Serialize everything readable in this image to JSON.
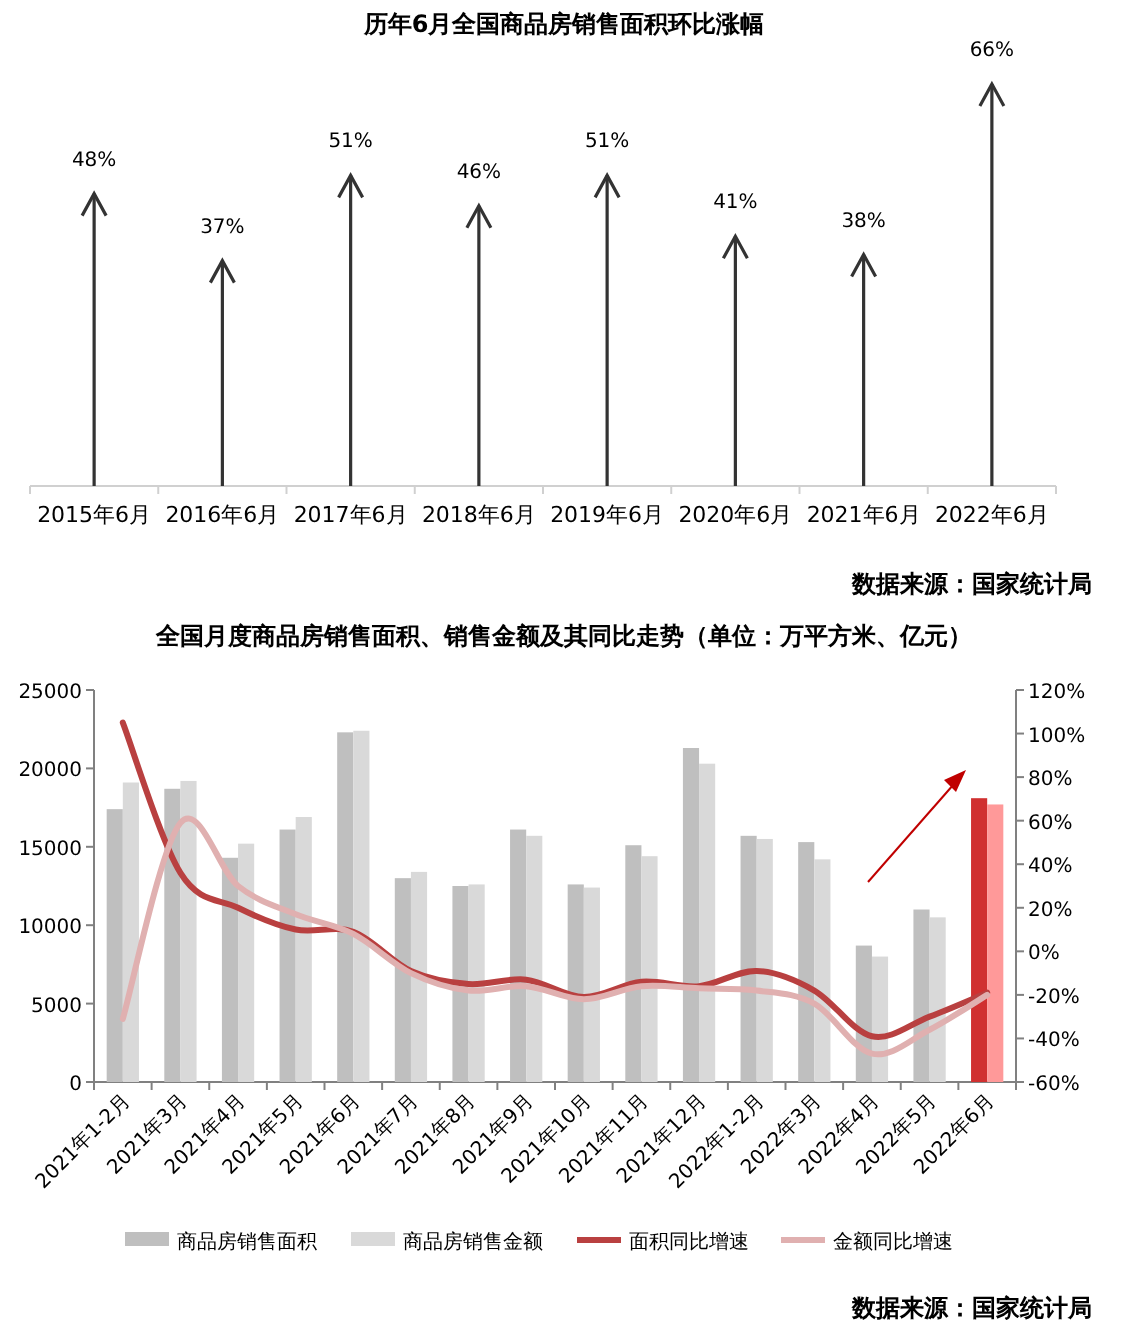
{
  "chart_data": [
    {
      "type": "bar",
      "title": "历年6月全国商品房销售面积环比涨幅",
      "categories": [
        "2015年6月",
        "2016年6月",
        "2017年6月",
        "2018年6月",
        "2019年6月",
        "2020年6月",
        "2021年6月",
        "2022年6月"
      ],
      "values": [
        48,
        37,
        51,
        46,
        51,
        41,
        38,
        66
      ],
      "value_labels": [
        "48%",
        "37%",
        "51%",
        "46%",
        "51%",
        "41%",
        "38%",
        "66%"
      ],
      "color": "#333333",
      "annotations": [
        "数据来源：国家统计局"
      ]
    },
    {
      "type": "bar",
      "title": "全国月度商品房销售面积、销售金额及其同比走势（单位：万平方米、亿元）",
      "categories": [
        "2021年1-2月",
        "2021年3月",
        "2021年4月",
        "2021年5月",
        "2021年6月",
        "2021年7月",
        "2021年8月",
        "2021年9月",
        "2021年10月",
        "2021年11月",
        "2021年12月",
        "2022年1-2月",
        "2022年3月",
        "2022年4月",
        "2022年5月",
        "2022年6月"
      ],
      "series": [
        {
          "name": "商品房销售面积",
          "type": "bar",
          "colors": [
            "#bfbfbf",
            "#bfbfbf",
            "#bfbfbf",
            "#bfbfbf",
            "#bfbfbf",
            "#bfbfbf",
            "#bfbfbf",
            "#bfbfbf",
            "#bfbfbf",
            "#bfbfbf",
            "#bfbfbf",
            "#bfbfbf",
            "#bfbfbf",
            "#bfbfbf",
            "#bfbfbf",
            "#d03030"
          ],
          "color": "#bfbfbf",
          "values": [
            17400,
            18700,
            14300,
            16100,
            22300,
            13000,
            12500,
            16100,
            12600,
            15100,
            21300,
            15700,
            15300,
            8700,
            11000,
            18100
          ]
        },
        {
          "name": "商品房销售金额",
          "type": "bar",
          "colors": [
            "#d9d9d9",
            "#d9d9d9",
            "#d9d9d9",
            "#d9d9d9",
            "#d9d9d9",
            "#d9d9d9",
            "#d9d9d9",
            "#d9d9d9",
            "#d9d9d9",
            "#d9d9d9",
            "#d9d9d9",
            "#d9d9d9",
            "#d9d9d9",
            "#d9d9d9",
            "#d9d9d9",
            "#ff9999"
          ],
          "color": "#d9d9d9",
          "values": [
            19100,
            19200,
            15200,
            16900,
            22400,
            13400,
            12600,
            15700,
            12400,
            14400,
            20300,
            15500,
            14200,
            8000,
            10500,
            17700
          ]
        },
        {
          "name": "面积同比增速",
          "type": "line",
          "axis": "y2",
          "color": "#b94040",
          "values": [
            105,
            36,
            20,
            10,
            9,
            -9,
            -15,
            -13,
            -21,
            -14,
            -16,
            -9,
            -18,
            -39,
            -30,
            -19
          ]
        },
        {
          "name": "金额同比增速",
          "type": "line",
          "axis": "y2",
          "color": "#e0b0b0",
          "values": [
            -31,
            59,
            30,
            17,
            8,
            -10,
            -18,
            -16,
            -22,
            -16,
            -17,
            -18,
            -24,
            -47,
            -36,
            -20
          ]
        }
      ],
      "ylim": [
        0,
        25000
      ],
      "yticks": [
        0,
        5000,
        10000,
        15000,
        20000,
        25000
      ],
      "y2lim": [
        -60,
        120
      ],
      "y2ticks": [
        {
          "value": -60,
          "label": "-60%"
        },
        {
          "value": -40,
          "label": "-40%"
        },
        {
          "value": -20,
          "label": "-20%"
        },
        {
          "value": 0,
          "label": "0%"
        },
        {
          "value": 20,
          "label": "20%"
        },
        {
          "value": 40,
          "label": "40%"
        },
        {
          "value": 60,
          "label": "60%"
        },
        {
          "value": 80,
          "label": "80%"
        },
        {
          "value": 100,
          "label": "100%"
        },
        {
          "value": 120,
          "label": "120%"
        }
      ],
      "marker": "none",
      "legend": "bottom",
      "grid": false,
      "annotations": [
        "数据来源：国家统计局"
      ]
    }
  ]
}
